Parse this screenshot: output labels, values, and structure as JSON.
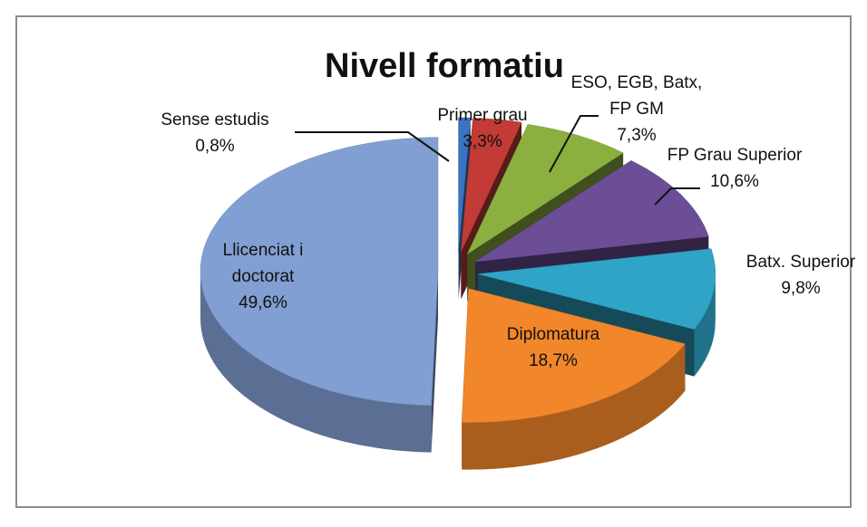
{
  "chart_data": {
    "type": "pie",
    "title": "Nivell formatiu",
    "categories": [
      "Sense estudis",
      "Primer grau",
      "ESO, EGB, Batx, FP GM",
      "FP Grau Superior",
      "Batx. Superior",
      "Diplomatura",
      "Llicenciat i doctorat"
    ],
    "values": [
      0.8,
      3.3,
      7.3,
      10.6,
      9.8,
      18.7,
      49.6
    ],
    "value_labels": [
      "0,8%",
      "3,3%",
      "7,3%",
      "10,6%",
      "9,8%",
      "18,7%",
      "49,6%"
    ],
    "colors": [
      "#3a74c0",
      "#c23b36",
      "#8bb040",
      "#6b4e96",
      "#2fa4c6",
      "#f2862b",
      "#819fd2"
    ]
  }
}
